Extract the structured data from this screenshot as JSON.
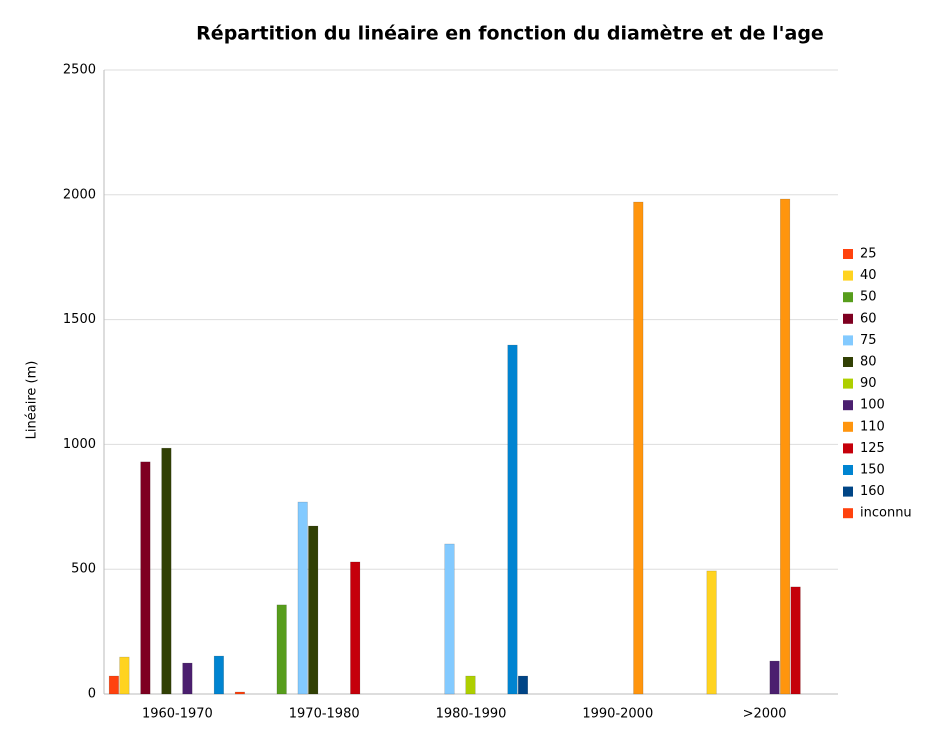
{
  "chart_data": {
    "type": "bar",
    "title": "Répartition du linéaire en fonction du diamètre et de l'age",
    "y_label": "Linéaire (m)",
    "categories": [
      "1960-1970",
      "1970-1980",
      "1980-1990",
      "1990-2000",
      ">2000"
    ],
    "series": [
      {
        "name": "25",
        "color": "#ff420e",
        "values": [
          72,
          null,
          null,
          null,
          null
        ]
      },
      {
        "name": "40",
        "color": "#ffd320",
        "values": [
          148,
          null,
          null,
          null,
          493
        ]
      },
      {
        "name": "50",
        "color": "#579d1c",
        "values": [
          null,
          357,
          null,
          null,
          null
        ]
      },
      {
        "name": "60",
        "color": "#7e0021",
        "values": [
          930,
          null,
          null,
          null,
          null
        ]
      },
      {
        "name": "75",
        "color": "#83caff",
        "values": [
          null,
          769,
          601,
          null,
          null
        ]
      },
      {
        "name": "80",
        "color": "#314004",
        "values": [
          985,
          673,
          null,
          null,
          null
        ]
      },
      {
        "name": "90",
        "color": "#aecf00",
        "values": [
          null,
          null,
          72,
          null,
          null
        ]
      },
      {
        "name": "100",
        "color": "#4b1f6f",
        "values": [
          124,
          null,
          null,
          null,
          132
        ]
      },
      {
        "name": "110",
        "color": "#ff950e",
        "values": [
          null,
          null,
          null,
          1971,
          1983
        ]
      },
      {
        "name": "125",
        "color": "#c5000b",
        "values": [
          null,
          529,
          null,
          null,
          429
        ]
      },
      {
        "name": "150",
        "color": "#0084d1",
        "values": [
          152,
          null,
          1398,
          null,
          null
        ]
      },
      {
        "name": "160",
        "color": "#004586",
        "values": [
          null,
          null,
          72,
          null,
          null
        ]
      },
      {
        "name": "inconnu",
        "color": "#ff420e",
        "values": [
          8,
          null,
          null,
          null,
          null
        ]
      }
    ],
    "ylim": [
      0,
      2500
    ],
    "yticks": [
      0,
      500,
      1000,
      1500,
      2000,
      2500
    ],
    "grid": true,
    "legend": "right"
  }
}
